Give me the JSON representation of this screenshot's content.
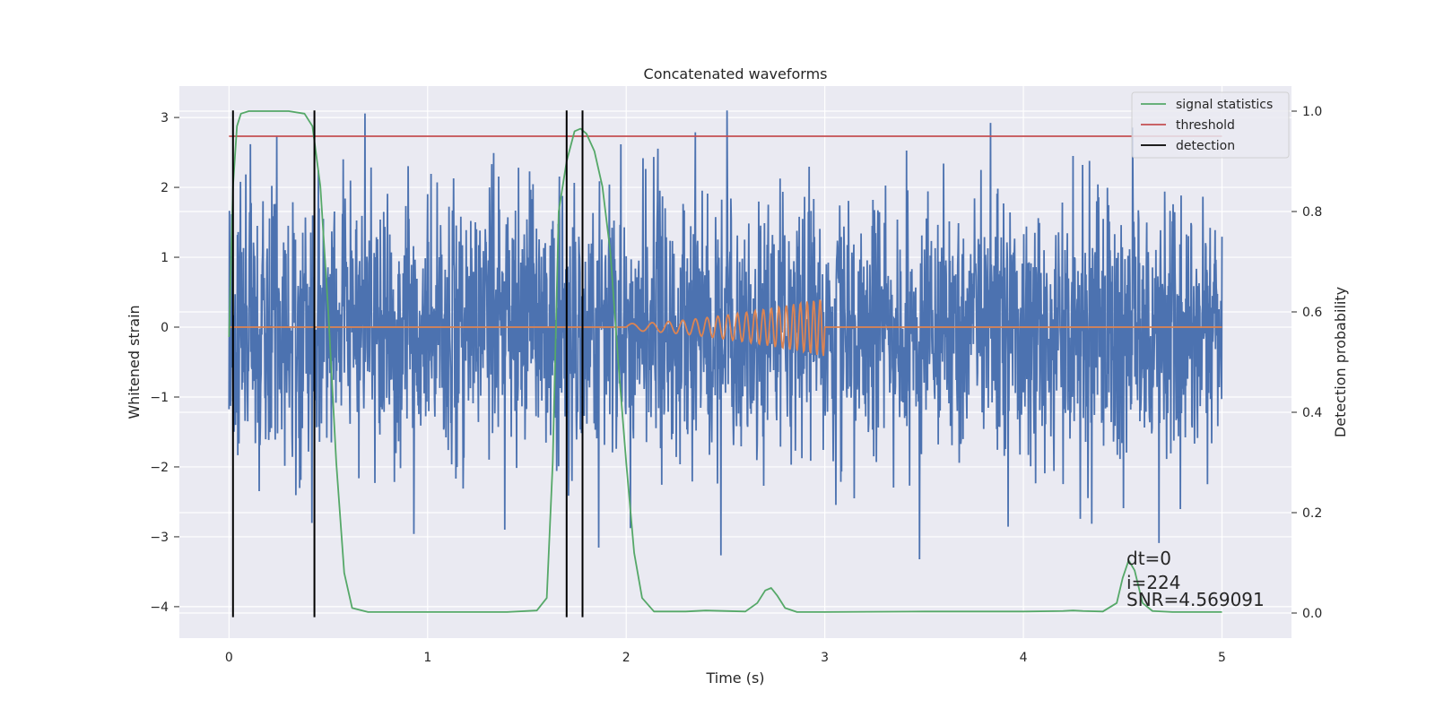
{
  "chart_data": {
    "type": "line",
    "title": "Concatenated waveforms",
    "xlabel": "Time (s)",
    "ylabel": "Whitened strain",
    "y2label": "Detection probability",
    "xlim": [
      -0.25,
      5.35
    ],
    "ylim": [
      -4.45,
      3.45
    ],
    "y2lim": [
      -0.05,
      1.05
    ],
    "xticks": [
      0,
      1,
      2,
      3,
      4,
      5
    ],
    "yticks": [
      -4,
      -3,
      -2,
      -1,
      0,
      1,
      2,
      3
    ],
    "y2ticks": [
      0.0,
      0.2,
      0.4,
      0.6,
      0.8,
      1.0
    ],
    "xtick_labels": [
      "0",
      "1",
      "2",
      "3",
      "4",
      "5"
    ],
    "ytick_labels": [
      "−4",
      "−3",
      "−2",
      "−1",
      "0",
      "1",
      "2",
      "3"
    ],
    "y2tick_labels": [
      "0.0",
      "0.2",
      "0.4",
      "0.6",
      "0.8",
      "1.0"
    ],
    "grid": true,
    "legend_placement": "top-right",
    "colors": {
      "strain": "#4c72b0",
      "injection": "#dd8452",
      "statistics": "#55a868",
      "threshold": "#c44e52",
      "detection": "#000000",
      "background": "#eaeaf2",
      "grid": "#ffffff"
    },
    "series": [
      {
        "name": "",
        "role": "strain",
        "axis": "left",
        "x_range": [
          0,
          5
        ],
        "amplitude_range": [
          -4.1,
          3.1
        ]
      },
      {
        "name": "",
        "role": "injection",
        "axis": "left",
        "x_range": [
          0,
          5
        ],
        "chirp_start": 2.0,
        "chirp_end": 3.0,
        "peak_amplitude": 0.42
      },
      {
        "name": "signal statistics",
        "role": "statistics",
        "axis": "right",
        "x": [
          0.0,
          0.02,
          0.04,
          0.06,
          0.1,
          0.2,
          0.3,
          0.38,
          0.42,
          0.46,
          0.5,
          0.54,
          0.58,
          0.62,
          0.7,
          1.0,
          1.4,
          1.55,
          1.6,
          1.63,
          1.66,
          1.7,
          1.74,
          1.77,
          1.8,
          1.84,
          1.88,
          1.92,
          1.96,
          2.0,
          2.04,
          2.08,
          2.14,
          2.3,
          2.4,
          2.6,
          2.66,
          2.7,
          2.73,
          2.76,
          2.8,
          2.86,
          3.0,
          3.5,
          4.0,
          4.2,
          4.25,
          4.3,
          4.4,
          4.47,
          4.5,
          4.53,
          4.56,
          4.6,
          4.65,
          4.75,
          5.0
        ],
        "values": [
          0.55,
          0.85,
          0.97,
          0.995,
          1.0,
          1.0,
          1.0,
          0.995,
          0.97,
          0.85,
          0.6,
          0.3,
          0.08,
          0.01,
          0.002,
          0.002,
          0.002,
          0.005,
          0.03,
          0.3,
          0.8,
          0.9,
          0.96,
          0.965,
          0.955,
          0.92,
          0.85,
          0.72,
          0.5,
          0.3,
          0.12,
          0.03,
          0.003,
          0.003,
          0.005,
          0.003,
          0.02,
          0.045,
          0.05,
          0.035,
          0.01,
          0.002,
          0.002,
          0.003,
          0.003,
          0.004,
          0.005,
          0.004,
          0.003,
          0.02,
          0.07,
          0.105,
          0.085,
          0.02,
          0.004,
          0.002,
          0.002
        ]
      },
      {
        "name": "threshold",
        "role": "threshold",
        "axis": "right",
        "x": [
          0,
          5
        ],
        "values": [
          0.95,
          0.95
        ]
      },
      {
        "name": "detection",
        "role": "detection",
        "axis": "left",
        "x": [
          0.02,
          0.43,
          1.7,
          1.78
        ],
        "y_range": [
          -4.15,
          3.1
        ]
      }
    ],
    "annotations": [
      "dt=0",
      "i=224",
      "SNR=4.569091"
    ]
  }
}
